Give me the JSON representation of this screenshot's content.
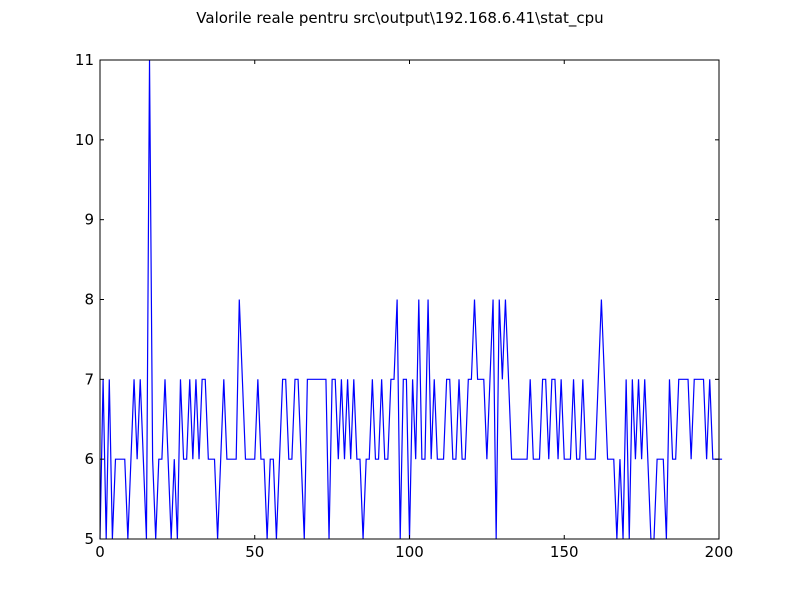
{
  "chart_data": {
    "type": "line",
    "title": "Valorile reale pentru src\\output\\192.168.6.41\\stat_cpu",
    "xlabel": "",
    "ylabel": "",
    "xlim": [
      0,
      200
    ],
    "ylim": [
      5,
      11
    ],
    "xticks": [
      "0",
      "50",
      "100",
      "150",
      "200"
    ],
    "yticks": [
      "5",
      "6",
      "7",
      "8",
      "9",
      "10",
      "11"
    ],
    "grid": false,
    "line_color": "#0000ff",
    "series": [
      {
        "values": [
          5,
          7,
          5,
          7,
          5,
          6,
          6,
          6,
          6,
          5,
          6,
          7,
          6,
          7,
          6,
          5,
          11,
          6,
          5,
          6,
          6,
          7,
          6,
          5,
          6,
          5,
          7,
          6,
          6,
          7,
          6,
          7,
          6,
          7,
          7,
          6,
          6,
          6,
          5,
          6,
          7,
          6,
          6,
          6,
          6,
          8,
          7,
          6,
          6,
          6,
          6,
          7,
          6,
          6,
          5,
          6,
          6,
          5,
          6,
          7,
          7,
          6,
          6,
          7,
          7,
          6,
          5,
          7,
          7,
          7,
          7,
          7,
          7,
          7,
          5,
          7,
          7,
          6,
          7,
          6,
          7,
          6,
          7,
          6,
          6,
          5,
          6,
          6,
          7,
          6,
          6,
          7,
          6,
          6,
          7,
          7,
          8,
          5,
          7,
          7,
          5,
          7,
          6,
          8,
          6,
          6,
          8,
          6,
          7,
          6,
          6,
          6,
          7,
          7,
          6,
          6,
          7,
          6,
          6,
          7,
          7,
          8,
          7,
          7,
          7,
          6,
          7,
          8,
          5,
          8,
          7,
          8,
          7,
          6,
          6,
          6,
          6,
          6,
          6,
          7,
          6,
          6,
          6,
          7,
          7,
          6,
          7,
          7,
          6,
          7,
          6,
          6,
          6,
          7,
          6,
          6,
          7,
          6,
          6,
          6,
          6,
          7,
          8,
          7,
          6,
          6,
          6,
          5,
          6,
          5,
          7,
          5,
          7,
          6,
          7,
          6,
          7,
          6,
          5,
          5,
          6,
          6,
          6,
          5,
          7,
          6,
          6,
          7,
          7,
          7,
          7,
          6,
          7,
          7,
          7,
          7,
          6,
          7,
          6,
          6,
          6,
          6
        ]
      }
    ]
  }
}
